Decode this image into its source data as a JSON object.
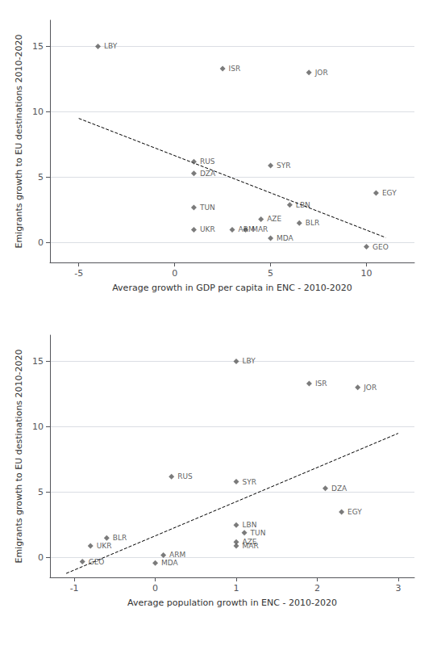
{
  "chart_data": [
    {
      "type": "scatter",
      "xlabel": "Average growth in GDP per capita in ENC - 2010-2020",
      "ylabel": "Emigrants growth to EU destinations 2010-2020",
      "xlim": [
        -6.5,
        12.5
      ],
      "ylim": [
        -1.5,
        17
      ],
      "xticks": [
        -5,
        0,
        5,
        10
      ],
      "yticks": [
        0,
        5,
        10,
        15
      ],
      "grid": "y",
      "series": [
        {
          "type": "scatter",
          "color": "#5a5a5a",
          "marker": "diamond",
          "labels": [
            "LBY",
            "ISR",
            "JOR",
            "RUS",
            "DZA",
            "SYR",
            "TUN",
            "LBN",
            "AZE",
            "UKR",
            "ARM",
            "MAR",
            "BLR",
            "MDA",
            "EGY",
            "GEO"
          ],
          "x": [
            -4.0,
            2.5,
            7.0,
            1.0,
            1.0,
            5.0,
            1.0,
            6.0,
            4.5,
            1.0,
            3.0,
            3.7,
            6.5,
            5.0,
            10.5,
            10.0
          ],
          "values": [
            15.0,
            13.3,
            13.0,
            6.2,
            5.3,
            5.9,
            2.7,
            2.9,
            1.8,
            1.0,
            1.0,
            1.0,
            1.5,
            0.35,
            3.8,
            -0.3
          ]
        },
        {
          "type": "line",
          "color": "#000000",
          "line_style": "dashed",
          "x": [
            -5,
            11
          ],
          "values": [
            9.5,
            0.4
          ]
        }
      ]
    },
    {
      "type": "scatter",
      "xlabel": "Average population growth in ENC - 2010-2020",
      "ylabel": "Emigrants growth to EU destinations 2010-2020",
      "xlim": [
        -1.3,
        3.2
      ],
      "ylim": [
        -1.5,
        17
      ],
      "xticks": [
        -1,
        0,
        1,
        2,
        3
      ],
      "yticks": [
        0,
        5,
        10,
        15
      ],
      "grid": "y",
      "series": [
        {
          "type": "scatter",
          "color": "#5a5a5a",
          "marker": "diamond",
          "labels": [
            "LBY",
            "ISR",
            "JOR",
            "RUS",
            "DZA",
            "SYR",
            "TUN",
            "LBN",
            "AZE",
            "UKR",
            "ARM",
            "MAR",
            "BLR",
            "MDA",
            "EGY",
            "GEO"
          ],
          "x": [
            1.0,
            1.9,
            2.5,
            0.2,
            2.1,
            1.0,
            1.1,
            1.0,
            1.0,
            -0.8,
            0.1,
            1.0,
            -0.6,
            0.0,
            2.3,
            -0.9
          ],
          "values": [
            15.0,
            13.3,
            13.0,
            6.2,
            5.3,
            5.8,
            1.9,
            2.5,
            1.2,
            0.9,
            0.2,
            0.9,
            1.5,
            -0.4,
            3.5,
            -0.3
          ]
        },
        {
          "type": "line",
          "color": "#000000",
          "line_style": "dashed",
          "x": [
            -1.1,
            3.0
          ],
          "values": [
            -1.2,
            9.5
          ]
        }
      ]
    }
  ]
}
